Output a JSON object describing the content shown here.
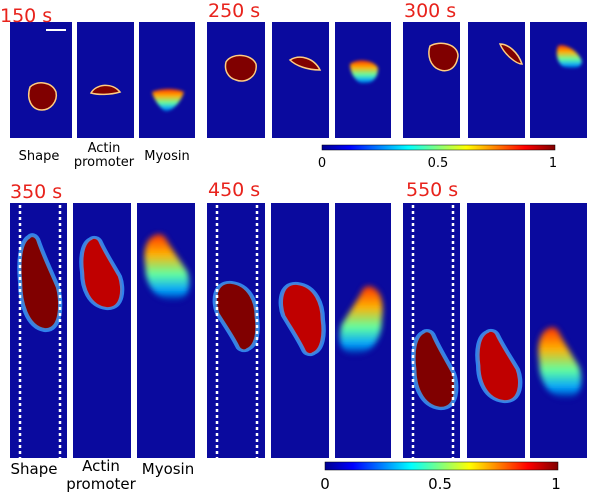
{
  "top": {
    "times": [
      "150 s",
      "250 s",
      "300 s"
    ],
    "labels": {
      "shape": "Shape",
      "actin": [
        "Actin",
        "promoter"
      ],
      "myosin": "Myosin"
    },
    "colorbar_ticks": [
      "0",
      "0.5",
      "1"
    ]
  },
  "bottom": {
    "times": [
      "350 s",
      "450 s",
      "550 s"
    ],
    "labels": {
      "shape": "Shape",
      "actin": [
        "Actin",
        "promoter"
      ],
      "myosin": "Myosin"
    },
    "colorbar_ticks": [
      "0",
      "0.5",
      "1"
    ]
  }
}
